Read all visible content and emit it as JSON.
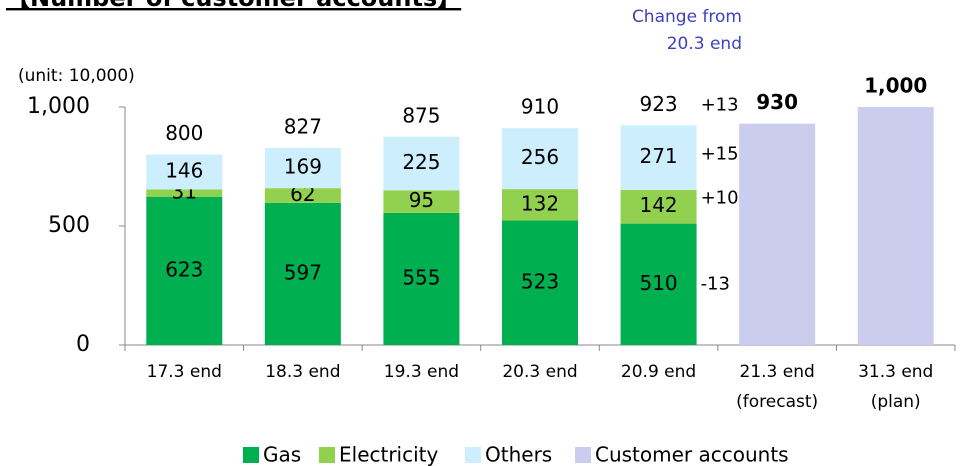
{
  "chart_data": {
    "type": "stacked_bar",
    "title": "【Number of customer accounts】",
    "unit_label": "(unit: 10,000)",
    "categories": [
      "17.3 end",
      "18.3 end",
      "19.3 end",
      "20.3 end",
      "20.9 end",
      "21.3 end\n(forecast)",
      "31.3 end\n(plan)"
    ],
    "series": [
      {
        "name": "Gas",
        "color": "#00b050",
        "values": [
          623,
          597,
          555,
          523,
          510,
          null,
          null
        ]
      },
      {
        "name": "Electricity",
        "color": "#92d050",
        "values": [
          31,
          62,
          95,
          132,
          142,
          null,
          null
        ]
      },
      {
        "name": "Others",
        "color": "#cdeefc",
        "values": [
          146,
          169,
          225,
          256,
          271,
          null,
          null
        ]
      },
      {
        "name": "Customer accounts",
        "color": "#ccccee",
        "values": [
          null,
          null,
          null,
          null,
          null,
          930,
          1000
        ],
        "value_labels": [
          null,
          null,
          null,
          null,
          null,
          "930",
          "1,000"
        ]
      }
    ],
    "totals": [
      800,
      827,
      875,
      910,
      923
    ],
    "change_title": "Change from\n20.3 end",
    "changes": [
      "+13",
      "+15",
      "+10",
      "-13"
    ],
    "change_color": "#4040c0",
    "ylim": [
      0,
      1000
    ],
    "yticks": [
      0,
      500,
      {
        "value": 1000,
        "label": "1,000"
      }
    ],
    "legend": "bottom"
  }
}
